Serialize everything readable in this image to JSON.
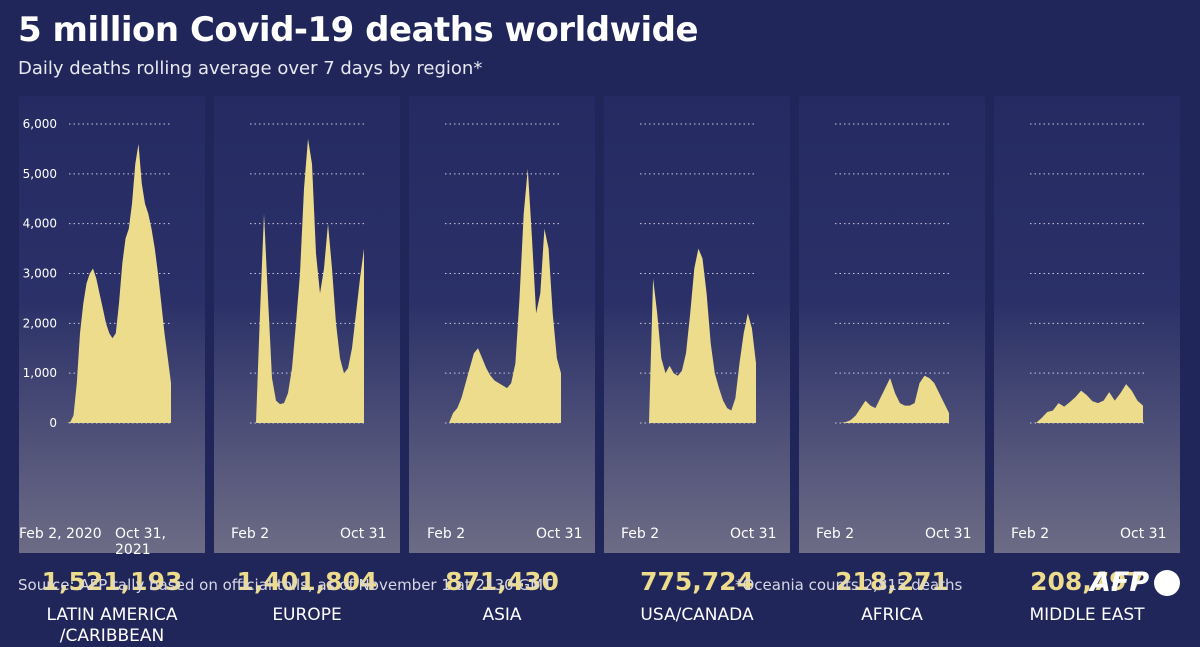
{
  "header": {
    "title": "5 million Covid-19 deaths worldwide",
    "subtitle": "Daily deaths rolling average over 7 days by region*"
  },
  "footer": {
    "source": "Source: AFP tally based on official tolls, as of  November 1 at 2130 GMT",
    "note": "*Oceania counts 2,815 deaths",
    "logo": "AFP"
  },
  "colors": {
    "background": "#20265a",
    "area": "#eddc8c",
    "total": "#eddc8c"
  },
  "y_ticks": [
    "6,000",
    "5,000",
    "4,000",
    "3,000",
    "2,000",
    "1,000",
    "0"
  ],
  "chart_data": [
    {
      "type": "area",
      "region": "LATIN AMERICA /CARIBBEAN",
      "region_lines": [
        "LATIN AMERICA",
        "/CARIBBEAN"
      ],
      "total": "1,521,193",
      "x_start": "Feb 2, 2020",
      "x_end": "Oct 31, 2021",
      "ylim": [
        0,
        6000
      ],
      "grid": true,
      "values": [
        0,
        20,
        150,
        800,
        1800,
        2400,
        2800,
        3000,
        3100,
        2900,
        2600,
        2300,
        2000,
        1800,
        1700,
        1800,
        2400,
        3200,
        3700,
        3900,
        4400,
        5200,
        5600,
        4800,
        4400,
        4200,
        3900,
        3500,
        3000,
        2400,
        1800,
        1300,
        800
      ]
    },
    {
      "type": "area",
      "region": "EUROPE",
      "region_lines": [
        "EUROPE"
      ],
      "total": "1,401,804",
      "x_start": "Feb 2",
      "x_end": "Oct 31",
      "ylim": [
        0,
        6000
      ],
      "grid": true,
      "values": [
        0,
        2200,
        4200,
        2500,
        900,
        450,
        380,
        400,
        600,
        1100,
        2000,
        3000,
        4700,
        5700,
        5200,
        3400,
        2600,
        3100,
        4000,
        3100,
        2000,
        1300,
        1000,
        1100,
        1500,
        2200,
        2900,
        3500
      ]
    },
    {
      "type": "area",
      "region": "ASIA",
      "region_lines": [
        "ASIA"
      ],
      "total": "871,430",
      "x_start": "Feb 2",
      "x_end": "Oct 31",
      "ylim": [
        0,
        6000
      ],
      "grid": true,
      "values": [
        0,
        200,
        300,
        500,
        800,
        1100,
        1400,
        1500,
        1300,
        1100,
        950,
        850,
        800,
        750,
        700,
        800,
        1200,
        2500,
        4200,
        5100,
        3700,
        2200,
        2600,
        3900,
        3500,
        2200,
        1300,
        1000
      ]
    },
    {
      "type": "area",
      "region": "USA/CANADA",
      "region_lines": [
        "USA/CANADA"
      ],
      "total": "775,724",
      "x_start": "Feb 2",
      "x_end": "Oct 31",
      "ylim": [
        0,
        6000
      ],
      "grid": true,
      "values": [
        0,
        2900,
        2200,
        1300,
        1000,
        1150,
        1000,
        950,
        1050,
        1400,
        2200,
        3100,
        3500,
        3300,
        2600,
        1600,
        1000,
        700,
        450,
        300,
        250,
        500,
        1200,
        1800,
        2200,
        1900,
        1200
      ]
    },
    {
      "type": "area",
      "region": "AFRICA",
      "region_lines": [
        "AFRICA"
      ],
      "total": "218,271",
      "x_start": "Feb 2",
      "x_end": "Oct 31",
      "ylim": [
        0,
        6000
      ],
      "grid": true,
      "values": [
        0,
        20,
        60,
        150,
        300,
        450,
        350,
        300,
        500,
        700,
        900,
        600,
        400,
        350,
        350,
        400,
        800,
        950,
        900,
        800,
        600,
        400,
        200
      ]
    },
    {
      "type": "area",
      "region": "MIDDLE EAST",
      "region_lines": [
        "MIDDLE EAST"
      ],
      "total": "208,797",
      "x_start": "Feb 2",
      "x_end": "Oct 31",
      "ylim": [
        0,
        6000
      ],
      "grid": true,
      "values": [
        0,
        100,
        220,
        250,
        400,
        330,
        420,
        520,
        650,
        560,
        440,
        400,
        450,
        620,
        450,
        600,
        780,
        650,
        450,
        350
      ]
    }
  ]
}
